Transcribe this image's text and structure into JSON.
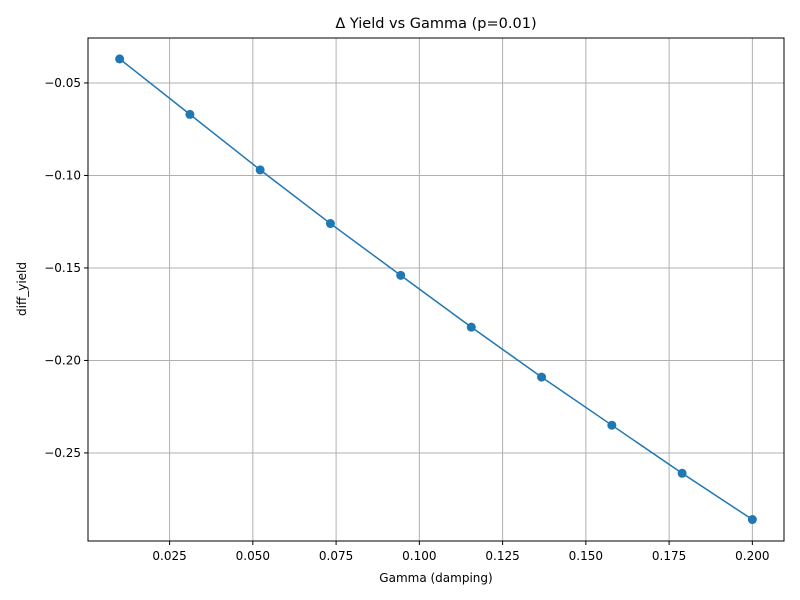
{
  "chart_data": {
    "type": "line",
    "title": "Δ Yield vs Gamma (p=0.01)",
    "xlabel": "Gamma (damping)",
    "ylabel": "diff_yield",
    "xlim": [
      0.0005,
      0.2095
    ],
    "ylim": [
      -0.2976,
      -0.0257
    ],
    "xticks": [
      0.025,
      0.05,
      0.075,
      0.1,
      0.125,
      0.15,
      0.175,
      0.2
    ],
    "xtick_labels": [
      "0.025",
      "0.050",
      "0.075",
      "0.100",
      "0.125",
      "0.150",
      "0.175",
      "0.200"
    ],
    "yticks": [
      -0.05,
      -0.1,
      -0.15,
      -0.2,
      -0.25
    ],
    "ytick_labels": [
      "−0.05",
      "−0.10",
      "−0.15",
      "−0.20",
      "−0.25"
    ],
    "grid": true,
    "series": [
      {
        "color": "#1f77b4",
        "marker": "circle",
        "x": [
          0.01,
          0.0311,
          0.0522,
          0.0733,
          0.0944,
          0.1156,
          0.1367,
          0.1578,
          0.1789,
          0.2
        ],
        "y": [
          -0.037,
          -0.067,
          -0.097,
          -0.126,
          -0.154,
          -0.182,
          -0.209,
          -0.235,
          -0.261,
          -0.286
        ]
      }
    ]
  }
}
